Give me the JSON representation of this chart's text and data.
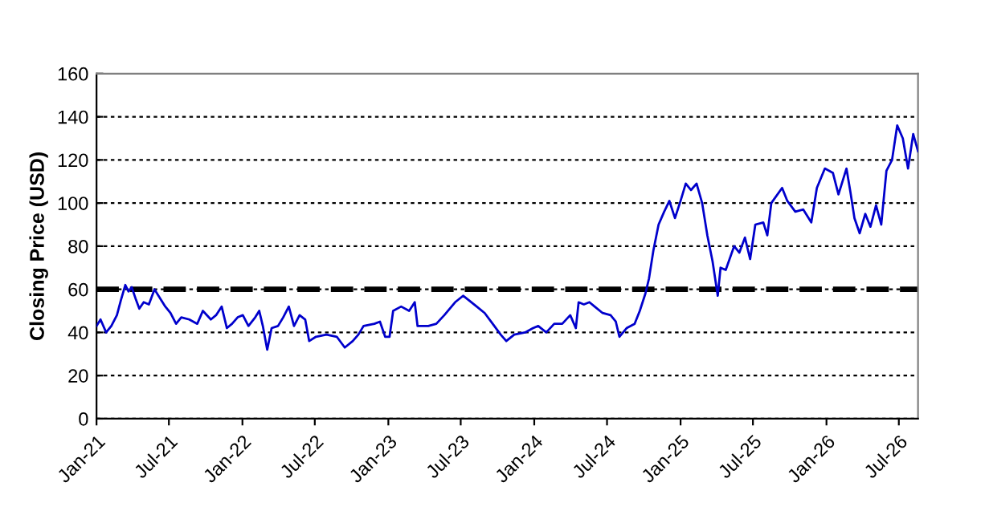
{
  "chart_data": {
    "type": "line",
    "ylabel": "Closing Price (USD)",
    "x": [
      "2021-01-01",
      "2021-01-11",
      "2021-01-25",
      "2021-02-07",
      "2021-02-21",
      "2021-03-03",
      "2021-03-14",
      "2021-03-22",
      "2021-03-30",
      "2021-04-10",
      "2021-04-18",
      "2021-04-29",
      "2021-05-12",
      "2021-05-26",
      "2021-06-05",
      "2021-06-22",
      "2021-07-05",
      "2021-07-19",
      "2021-08-01",
      "2021-08-21",
      "2021-09-10",
      "2021-09-24",
      "2021-10-14",
      "2021-10-27",
      "2021-11-10",
      "2021-11-23",
      "2021-12-06",
      "2021-12-20",
      "2022-01-02",
      "2022-01-16",
      "2022-02-02",
      "2022-02-12",
      "2022-02-21",
      "2022-03-04",
      "2022-03-15",
      "2022-03-31",
      "2022-04-13",
      "2022-04-27",
      "2022-05-10",
      "2022-05-24",
      "2022-06-07",
      "2022-06-17",
      "2022-07-04",
      "2022-07-30",
      "2022-08-25",
      "2022-09-14",
      "2022-10-04",
      "2022-10-18",
      "2022-10-31",
      "2022-11-27",
      "2022-12-11",
      "2022-12-24",
      "2023-01-04",
      "2023-01-13",
      "2023-02-02",
      "2023-02-22",
      "2023-03-08",
      "2023-03-15",
      "2023-04-11",
      "2023-05-01",
      "2023-05-21",
      "2023-06-17",
      "2023-07-07",
      "2023-07-21",
      "2023-08-10",
      "2023-08-30",
      "2023-09-19",
      "2023-10-09",
      "2023-10-23",
      "2023-11-12",
      "2023-12-09",
      "2023-12-29",
      "2024-01-11",
      "2024-01-31",
      "2024-02-20",
      "2024-03-11",
      "2024-03-31",
      "2024-04-14",
      "2024-04-21",
      "2024-05-04",
      "2024-05-18",
      "2024-05-31",
      "2024-06-20",
      "2024-07-10",
      "2024-07-23",
      "2024-08-01",
      "2024-08-19",
      "2024-09-08",
      "2024-09-21",
      "2024-10-05",
      "2024-10-14",
      "2024-10-25",
      "2024-11-07",
      "2024-11-21",
      "2024-12-04",
      "2024-12-18",
      "2025-01-01",
      "2025-01-14",
      "2025-01-27",
      "2025-02-10",
      "2025-02-24",
      "2025-03-09",
      "2025-03-22",
      "2025-04-04",
      "2025-04-11",
      "2025-04-24",
      "2025-05-15",
      "2025-05-28",
      "2025-06-11",
      "2025-06-24",
      "2025-07-07",
      "2025-07-27",
      "2025-08-06",
      "2025-08-16",
      "2025-09-12",
      "2025-09-25",
      "2025-10-15",
      "2025-11-04",
      "2025-11-24",
      "2025-12-08",
      "2025-12-28",
      "2026-01-17",
      "2026-01-31",
      "2026-02-20",
      "2026-03-02",
      "2026-03-12",
      "2026-03-25",
      "2026-04-08",
      "2026-04-21",
      "2026-05-05",
      "2026-05-18",
      "2026-05-31",
      "2026-06-14",
      "2026-06-27",
      "2026-07-11",
      "2026-07-24",
      "2026-08-06",
      "2026-08-18"
    ],
    "series": [
      {
        "color": "#0000cc",
        "values": [
          43,
          46,
          40,
          43,
          48,
          55,
          62,
          59,
          61,
          55,
          51,
          54,
          53,
          60,
          57,
          52,
          49,
          44,
          47,
          46,
          44,
          50,
          46,
          48,
          52,
          42,
          44,
          47,
          48,
          43,
          47,
          50,
          43,
          32,
          42,
          43,
          47,
          52,
          43,
          48,
          46,
          36,
          38,
          39,
          38,
          33,
          36,
          39,
          43,
          44,
          45,
          38,
          38,
          50,
          52,
          50,
          54,
          43,
          43,
          44,
          48,
          54,
          57,
          55,
          52,
          49,
          44,
          39,
          36,
          39,
          40,
          42,
          43,
          40,
          44,
          44,
          48,
          42,
          54,
          53,
          54,
          52,
          49,
          48,
          45,
          38,
          42,
          44,
          50,
          58,
          65,
          78,
          90,
          96,
          101,
          93,
          101,
          109,
          106,
          109,
          100,
          85,
          73,
          57,
          70,
          69,
          80,
          77,
          84,
          74,
          90,
          91,
          85,
          100,
          107,
          101,
          96,
          97,
          91,
          107,
          116,
          114,
          104,
          116,
          105,
          93,
          86,
          95,
          89,
          99,
          90,
          115,
          120,
          136,
          130,
          116,
          132,
          124
        ]
      }
    ],
    "xlim": [
      "2021-01-01",
      "2026-08-18"
    ],
    "xticks": [
      {
        "value": "2021-01-01",
        "label": "Jan-21"
      },
      {
        "value": "2021-07-01",
        "label": "Jul-21"
      },
      {
        "value": "2022-01-01",
        "label": "Jan-22"
      },
      {
        "value": "2022-07-01",
        "label": "Jul-22"
      },
      {
        "value": "2023-01-01",
        "label": "Jan-23"
      },
      {
        "value": "2023-07-01",
        "label": "Jul-23"
      },
      {
        "value": "2024-01-01",
        "label": "Jan-24"
      },
      {
        "value": "2024-07-01",
        "label": "Jul-24"
      },
      {
        "value": "2025-01-01",
        "label": "Jan-25"
      },
      {
        "value": "2025-07-01",
        "label": "Jul-25"
      },
      {
        "value": "2026-01-01",
        "label": "Jan-26"
      },
      {
        "value": "2026-07-01",
        "label": "Jul-26"
      }
    ],
    "ylim": [
      0,
      160
    ],
    "yticks": [
      0,
      20,
      40,
      60,
      80,
      100,
      120,
      140,
      160
    ],
    "grid": "y",
    "legend": false,
    "marker": "none",
    "line_style": "solid",
    "ref_lines": [
      {
        "axis": "y",
        "value": 60,
        "color": "#000000",
        "line_style": "dashed"
      }
    ]
  }
}
